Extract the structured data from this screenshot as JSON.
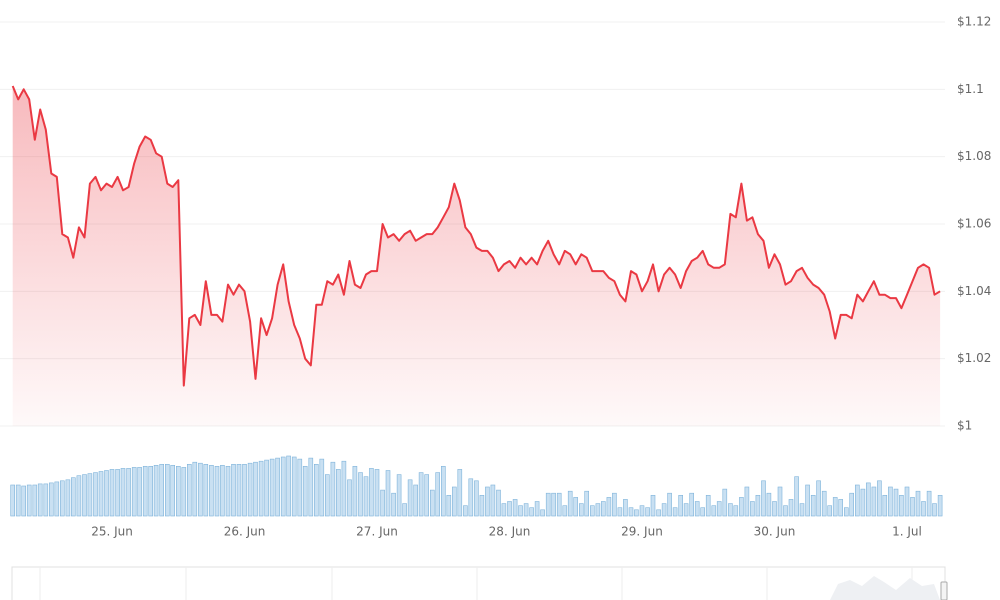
{
  "chart_data": {
    "type": "line",
    "x": [
      24.25,
      24.292,
      24.333,
      24.375,
      24.417,
      24.458,
      24.5,
      24.542,
      24.583,
      24.625,
      24.667,
      24.708,
      24.75,
      24.792,
      24.833,
      24.875,
      24.917,
      24.958,
      25,
      25.042,
      25.083,
      25.125,
      25.167,
      25.208,
      25.25,
      25.292,
      25.333,
      25.375,
      25.417,
      25.458,
      25.5,
      25.542,
      25.583,
      25.625,
      25.667,
      25.708,
      25.75,
      25.792,
      25.833,
      25.875,
      25.917,
      25.958,
      26,
      26.042,
      26.083,
      26.125,
      26.167,
      26.208,
      26.25,
      26.292,
      26.333,
      26.375,
      26.417,
      26.458,
      26.5,
      26.542,
      26.583,
      26.625,
      26.667,
      26.708,
      26.75,
      26.792,
      26.833,
      26.875,
      26.917,
      26.958,
      27,
      27.042,
      27.083,
      27.125,
      27.167,
      27.208,
      27.25,
      27.292,
      27.333,
      27.375,
      27.417,
      27.458,
      27.5,
      27.542,
      27.583,
      27.625,
      27.667,
      27.708,
      27.75,
      27.792,
      27.833,
      27.875,
      27.917,
      27.958,
      28,
      28.042,
      28.083,
      28.125,
      28.167,
      28.208,
      28.25,
      28.292,
      28.333,
      28.375,
      28.417,
      28.458,
      28.5,
      28.542,
      28.583,
      28.625,
      28.667,
      28.708,
      28.75,
      28.792,
      28.833,
      28.875,
      28.917,
      28.958,
      29,
      29.042,
      29.083,
      29.125,
      29.167,
      29.208,
      29.25,
      29.292,
      29.333,
      29.375,
      29.417,
      29.458,
      29.5,
      29.542,
      29.583,
      29.625,
      29.667,
      29.708,
      29.75,
      29.792,
      29.833,
      29.875,
      29.917,
      29.958,
      30,
      30.042,
      30.083,
      30.125,
      30.167,
      30.208,
      30.25,
      30.292,
      30.333,
      30.375,
      30.417,
      30.458,
      30.5,
      30.542,
      30.583,
      30.625,
      30.667,
      30.708,
      30.75,
      30.792,
      30.833,
      30.875,
      30.917,
      30.958,
      31,
      31.042,
      31.083,
      31.125,
      31.167,
      31.208,
      31.25
    ],
    "series": [
      {
        "type": "line",
        "color": "#ea3943",
        "values": [
          1.101,
          1.097,
          1.1,
          1.097,
          1.085,
          1.094,
          1.088,
          1.075,
          1.074,
          1.057,
          1.056,
          1.05,
          1.059,
          1.056,
          1.072,
          1.074,
          1.07,
          1.072,
          1.071,
          1.074,
          1.07,
          1.071,
          1.078,
          1.083,
          1.086,
          1.085,
          1.081,
          1.08,
          1.072,
          1.071,
          1.073,
          1.012,
          1.032,
          1.033,
          1.03,
          1.043,
          1.033,
          1.033,
          1.031,
          1.042,
          1.039,
          1.042,
          1.04,
          1.031,
          1.014,
          1.032,
          1.027,
          1.032,
          1.042,
          1.048,
          1.037,
          1.03,
          1.026,
          1.02,
          1.018,
          1.036,
          1.036,
          1.043,
          1.042,
          1.045,
          1.039,
          1.049,
          1.042,
          1.041,
          1.045,
          1.046,
          1.046,
          1.06,
          1.056,
          1.057,
          1.055,
          1.057,
          1.058,
          1.055,
          1.056,
          1.057,
          1.057,
          1.059,
          1.062,
          1.065,
          1.072,
          1.067,
          1.059,
          1.057,
          1.053,
          1.052,
          1.052,
          1.05,
          1.046,
          1.048,
          1.049,
          1.047,
          1.05,
          1.048,
          1.05,
          1.048,
          1.052,
          1.055,
          1.051,
          1.048,
          1.052,
          1.051,
          1.048,
          1.051,
          1.05,
          1.046,
          1.046,
          1.046,
          1.044,
          1.043,
          1.039,
          1.037,
          1.046,
          1.045,
          1.04,
          1.043,
          1.048,
          1.04,
          1.045,
          1.047,
          1.045,
          1.041,
          1.046,
          1.049,
          1.05,
          1.052,
          1.048,
          1.047,
          1.047,
          1.048,
          1.063,
          1.062,
          1.072,
          1.061,
          1.062,
          1.057,
          1.055,
          1.047,
          1.051,
          1.048,
          1.042,
          1.043,
          1.046,
          1.047,
          1.044,
          1.042,
          1.041,
          1.039,
          1.034,
          1.026,
          1.033,
          1.033,
          1.032,
          1.039,
          1.037,
          1.04,
          1.043,
          1.039,
          1.039,
          1.038,
          1.038,
          1.035,
          1.039,
          1.043,
          1.047,
          1.048,
          1.047,
          1.039,
          1.04
        ]
      },
      {
        "type": "bar",
        "axis": "y2",
        "color": "#c9e0f2",
        "values": [
          30,
          30,
          29,
          30,
          30,
          31,
          31,
          32,
          33,
          34,
          35,
          37,
          39,
          40,
          41,
          42,
          43,
          44,
          45,
          45,
          46,
          46,
          47,
          47,
          48,
          48,
          49,
          50,
          50,
          49,
          48,
          47,
          50,
          52,
          51,
          50,
          49,
          48,
          49,
          48,
          50,
          50,
          50,
          51,
          52,
          53,
          54,
          55,
          56,
          57,
          58,
          57,
          55,
          48,
          56,
          50,
          55,
          40,
          52,
          45,
          53,
          35,
          48,
          42,
          38,
          46,
          45,
          25,
          44,
          22,
          40,
          12,
          35,
          30,
          42,
          40,
          25,
          42,
          48,
          20,
          28,
          45,
          10,
          36,
          34,
          20,
          28,
          30,
          25,
          12,
          14,
          16,
          10,
          12,
          8,
          14,
          6,
          22,
          22,
          22,
          10,
          24,
          18,
          12,
          24,
          10,
          12,
          14,
          18,
          22,
          8,
          16,
          8,
          6,
          10,
          8,
          20,
          6,
          12,
          22,
          8,
          20,
          12,
          22,
          14,
          8,
          20,
          10,
          14,
          26,
          12,
          10,
          18,
          28,
          14,
          20,
          34,
          22,
          14,
          28,
          10,
          16,
          38,
          12,
          30,
          20,
          34,
          24,
          10,
          18,
          16,
          8,
          22,
          30,
          26,
          32,
          28,
          34,
          20,
          28,
          26,
          20,
          28,
          18,
          24,
          14,
          24,
          12,
          20
        ]
      }
    ],
    "xlim": [
      24.245,
      31.287
    ],
    "xticks": [
      {
        "value": 25,
        "label": "25. Jun"
      },
      {
        "value": 26,
        "label": "26. Jun"
      },
      {
        "value": 27,
        "label": "27. Jun"
      },
      {
        "value": 28,
        "label": "28. Jun"
      },
      {
        "value": 29,
        "label": "29. Jun"
      },
      {
        "value": 30,
        "label": "30. Jun"
      },
      {
        "value": 31,
        "label": "1. Jul"
      }
    ],
    "ylim": [
      1,
      1.12
    ],
    "yticks": [
      {
        "value": 1,
        "label": "$1"
      },
      {
        "value": 1.02,
        "label": "$1.02"
      },
      {
        "value": 1.04,
        "label": "$1.04"
      },
      {
        "value": 1.06,
        "label": "$1.06"
      },
      {
        "value": 1.08,
        "label": "$1.08"
      },
      {
        "value": 1.1,
        "label": "$1.1"
      },
      {
        "value": 1.12,
        "label": "$1.12"
      }
    ],
    "grid": true
  }
}
